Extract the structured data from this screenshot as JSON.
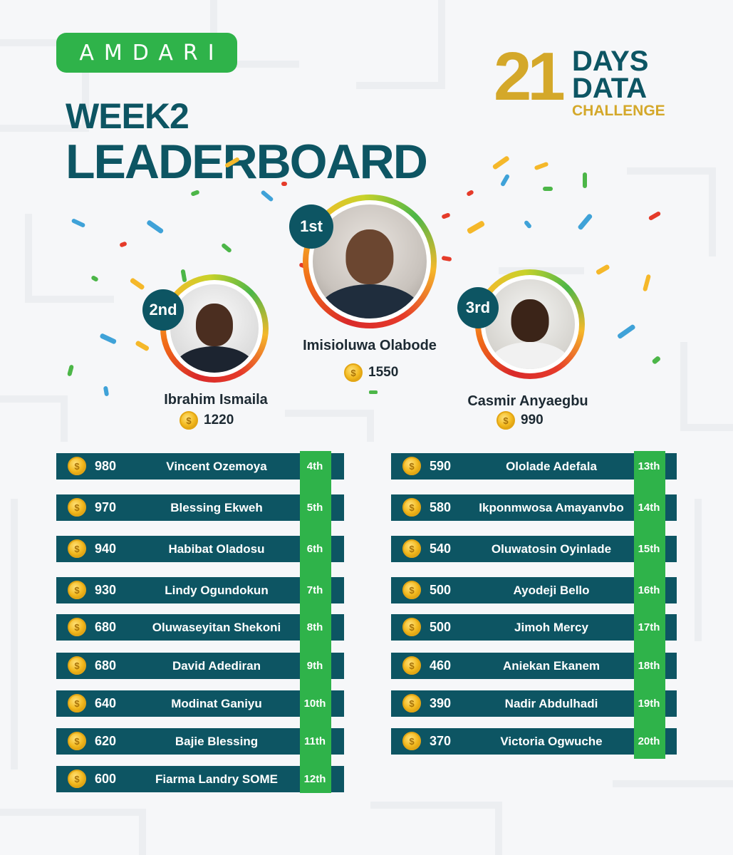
{
  "brand": {
    "logo_text": "AMDARI",
    "color": "#2fb34a"
  },
  "title": {
    "line1": "WEEK2",
    "line2": "LEADERBOARD",
    "color": "#0d5563"
  },
  "challenge_badge": {
    "number": "21",
    "line1": "DAYS",
    "line2": "DATA",
    "line3": "CHALLENGE",
    "gold": "#d4a82a"
  },
  "podium": [
    {
      "rank": "1st",
      "name": "Imisioluwa Olabode",
      "score": "1550"
    },
    {
      "rank": "2nd",
      "name": "Ibrahim Ismaila",
      "score": "1220"
    },
    {
      "rank": "3rd",
      "name": "Casmir Anyaegbu",
      "score": "990"
    }
  ],
  "leaderboard_left": [
    {
      "score": "980",
      "name": "Vincent Ozemoya",
      "rank": "4th"
    },
    {
      "score": "970",
      "name": "Blessing Ekweh",
      "rank": "5th"
    },
    {
      "score": "940",
      "name": "Habibat Oladosu",
      "rank": "6th"
    },
    {
      "score": "930",
      "name": "Lindy Ogundokun",
      "rank": "7th"
    },
    {
      "score": "680",
      "name": "Oluwaseyitan Shekoni",
      "rank": "8th"
    },
    {
      "score": "680",
      "name": "David Adediran",
      "rank": "9th"
    },
    {
      "score": "640",
      "name": "Modinat Ganiyu",
      "rank": "10th"
    },
    {
      "score": "620",
      "name": "Bajie Blessing",
      "rank": "11th"
    },
    {
      "score": "600",
      "name": "Fiarma Landry SOME",
      "rank": "12th"
    }
  ],
  "leaderboard_right": [
    {
      "score": "590",
      "name": "Ololade Adefala",
      "rank": "13th"
    },
    {
      "score": "580",
      "name": "Ikponmwosa Amayanvbo",
      "rank": "14th"
    },
    {
      "score": "540",
      "name": "Oluwatosin Oyinlade",
      "rank": "15th"
    },
    {
      "score": "500",
      "name": "Ayodeji Bello",
      "rank": "16th"
    },
    {
      "score": "500",
      "name": "Jimoh Mercy",
      "rank": "17th"
    },
    {
      "score": "460",
      "name": "Aniekan Ekanem",
      "rank": "18th"
    },
    {
      "score": "390",
      "name": "Nadir Abdulhadi",
      "rank": "19th"
    },
    {
      "score": "370",
      "name": "Victoria Ogwuche",
      "rank": "20th"
    }
  ],
  "colors": {
    "row_bg": "#0d5563",
    "rank_strip": "#2fb34a",
    "coin": "#f2b81d"
  },
  "icons": {
    "coin": "dollar-coin-icon"
  }
}
